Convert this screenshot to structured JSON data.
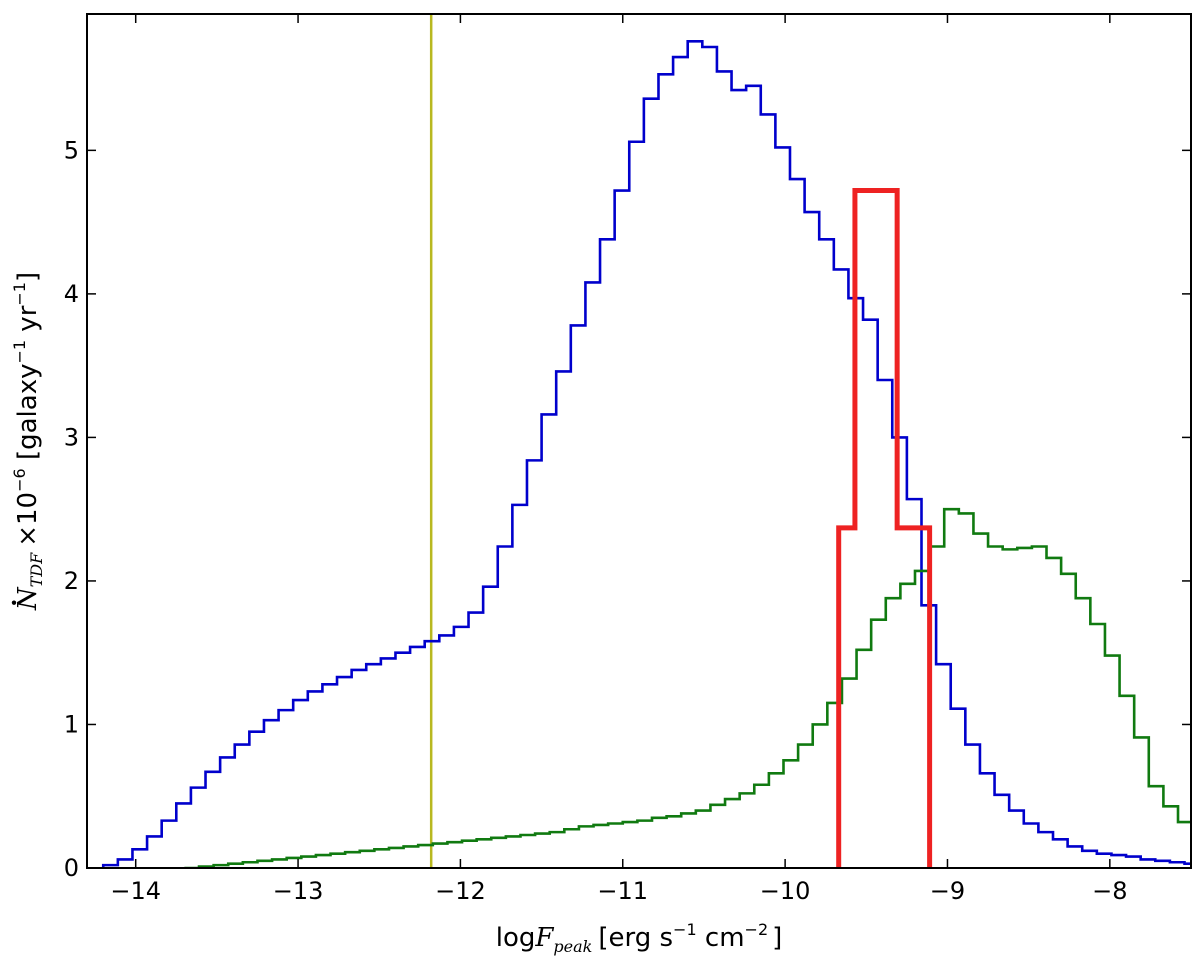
{
  "chart_data": {
    "type": "histogram",
    "title": "",
    "xlabel": "logF_peak [erg s⁻¹ cm⁻²]",
    "ylabel": "Ṅ_TDF ×10⁻⁶ [galaxy⁻¹ yr⁻¹]",
    "xlabel_parts": {
      "prefix": "log",
      "var": "F",
      "sub": "peak",
      "units": "[erg s",
      "exp1": "−1",
      "mid": " cm",
      "exp2": "−2",
      "end": "]"
    },
    "ylabel_parts": {
      "var": "N",
      "sub": "TDF",
      "mult": "×10",
      "mult_exp": "−6",
      "units": " [galaxy",
      "exp1": "−1",
      "mid": " yr",
      "exp2": "−1",
      "end": "]"
    },
    "xlim": [
      -14.3,
      -7.5
    ],
    "ylim": [
      0,
      5.95
    ],
    "xticks": [
      -14,
      -13,
      -12,
      -11,
      -10,
      -9,
      -8
    ],
    "yticks": [
      0,
      1,
      2,
      3,
      4,
      5
    ],
    "xtick_labels": [
      "−14",
      "−13",
      "−12",
      "−11",
      "−10",
      "−9",
      "−8"
    ],
    "ytick_labels": [
      "0",
      "1",
      "2",
      "3",
      "4",
      "5"
    ],
    "grid": false,
    "colors": {
      "blue": "#0000cc",
      "green": "#107a10",
      "red": "#ee2222",
      "yellow": "#b8b820"
    },
    "vertical_line": {
      "x": -12.18,
      "color": "#b8b820"
    },
    "series": [
      {
        "color": "#0000cc",
        "bin_start": -14.2,
        "bin_width": 0.09,
        "values": [
          0.02,
          0.06,
          0.13,
          0.22,
          0.33,
          0.45,
          0.56,
          0.67,
          0.77,
          0.86,
          0.95,
          1.03,
          1.1,
          1.17,
          1.23,
          1.28,
          1.33,
          1.38,
          1.42,
          1.46,
          1.5,
          1.54,
          1.58,
          1.62,
          1.68,
          1.78,
          1.96,
          2.24,
          2.53,
          2.84,
          3.16,
          3.46,
          3.78,
          4.08,
          4.38,
          4.72,
          5.06,
          5.36,
          5.53,
          5.65,
          5.76,
          5.72,
          5.55,
          5.42,
          5.45,
          5.25,
          5.02,
          4.8,
          4.57,
          4.38,
          4.17,
          3.97,
          3.82,
          3.4,
          3.0,
          2.57,
          1.83,
          1.42,
          1.11,
          0.86,
          0.66,
          0.51,
          0.4,
          0.31,
          0.25,
          0.2,
          0.15,
          0.12,
          0.1,
          0.09,
          0.08,
          0.06,
          0.05,
          0.04,
          0.03,
          0.02,
          0.01,
          0.01
        ]
      },
      {
        "color": "#107a10",
        "bin_start": -13.7,
        "bin_width": 0.09,
        "values": [
          0.0,
          0.01,
          0.02,
          0.03,
          0.04,
          0.05,
          0.06,
          0.07,
          0.08,
          0.09,
          0.1,
          0.11,
          0.12,
          0.13,
          0.14,
          0.15,
          0.16,
          0.17,
          0.18,
          0.19,
          0.2,
          0.21,
          0.22,
          0.23,
          0.24,
          0.25,
          0.27,
          0.29,
          0.3,
          0.31,
          0.32,
          0.33,
          0.35,
          0.36,
          0.38,
          0.4,
          0.44,
          0.48,
          0.52,
          0.58,
          0.66,
          0.75,
          0.86,
          1.0,
          1.15,
          1.32,
          1.52,
          1.73,
          1.88,
          1.98,
          2.07,
          2.24,
          2.5,
          2.47,
          2.33,
          2.24,
          2.22,
          2.23,
          2.24,
          2.16,
          2.05,
          1.88,
          1.7,
          1.48,
          1.2,
          0.91,
          0.57,
          0.43,
          0.32,
          0.23,
          0.16,
          0.12,
          0.1,
          0.09,
          0.08,
          0.07,
          0.06,
          0.05,
          0.04,
          0.03,
          0.03,
          0.02,
          0.02,
          0.01,
          0.01,
          0.01,
          0.0
        ]
      },
      {
        "color": "#ee2222",
        "edges": [
          -9.67,
          -9.57,
          -9.31,
          -9.11
        ],
        "values": [
          2.37,
          4.72,
          2.37
        ]
      }
    ]
  }
}
